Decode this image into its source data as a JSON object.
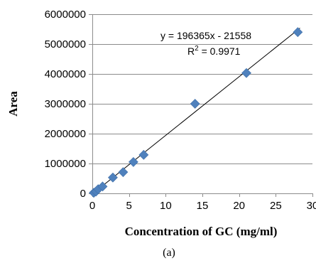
{
  "chart_data": {
    "type": "scatter",
    "xlabel": "Concentration of GC (mg/ml)",
    "ylabel": "Area",
    "xlim": [
      0,
      30
    ],
    "ylim": [
      0,
      6000000
    ],
    "x_ticks": [
      0,
      5,
      10,
      15,
      20,
      25,
      30
    ],
    "y_ticks": [
      0,
      1000000,
      2000000,
      3000000,
      4000000,
      5000000,
      6000000
    ],
    "x_tick_labels": [
      "0",
      "5",
      "10",
      "15",
      "20",
      "25",
      "30"
    ],
    "y_tick_labels": [
      "0",
      "1000000",
      "2000000",
      "3000000",
      "4000000",
      "5000000",
      "6000000"
    ],
    "grid": "horizontal",
    "marker": "diamond",
    "marker_color": "#4f81bd",
    "line_color": "#000000",
    "series": [
      {
        "points": [
          {
            "x": 0.2,
            "y": 20000
          },
          {
            "x": 0.5,
            "y": 60000
          },
          {
            "x": 0.8,
            "y": 140000
          },
          {
            "x": 1.4,
            "y": 230000
          },
          {
            "x": 2.8,
            "y": 530000
          },
          {
            "x": 4.2,
            "y": 710000
          },
          {
            "x": 5.6,
            "y": 1050000
          },
          {
            "x": 7.0,
            "y": 1290000
          },
          {
            "x": 14.0,
            "y": 3000000
          },
          {
            "x": 21.0,
            "y": 4030000
          },
          {
            "x": 28.0,
            "y": 5400000
          }
        ]
      }
    ],
    "trendline": {
      "slope": 196365,
      "intercept": -21558,
      "x_range": [
        0,
        28.3
      ]
    },
    "annotations": {
      "equation": "y = 196365x - 21558",
      "r2_prefix": "R",
      "r2_sup": "2",
      "r2_suffix": " = 0.9971"
    }
  },
  "caption": "(a)"
}
